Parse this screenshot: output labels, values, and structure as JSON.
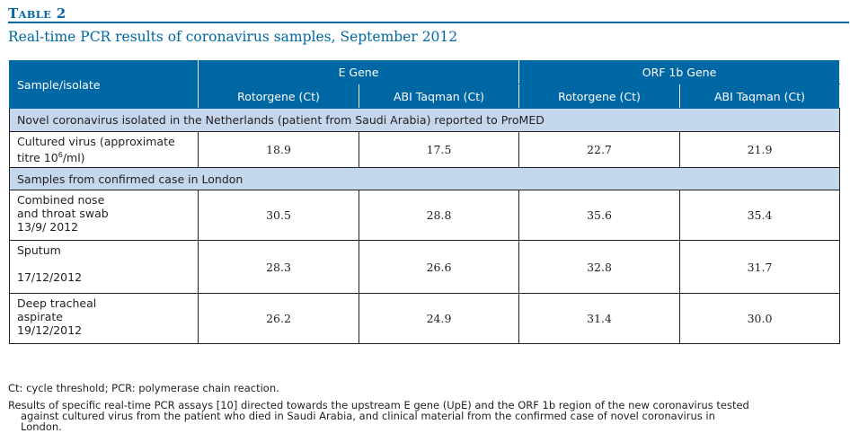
{
  "table_label": {
    "first": "T",
    "rest": "ABLE",
    "number": "2"
  },
  "table_title": "Real-time PCR results of coronavirus samples, September 2012",
  "header": {
    "sample_col": "Sample/isolate",
    "e_gene": "E Gene",
    "orf_gene": "ORF 1b Gene",
    "sub": [
      "Rotorgene (Ct)",
      "ABI Taqman (Ct)",
      "Rotorgene (Ct)",
      "ABI Taqman (Ct)"
    ]
  },
  "section1": "Novel coronavirus isolated in the Netherlands (patient from Saudi Arabia) reported to ProMED",
  "row_cultured": {
    "line1": "Cultured virus  (approximate",
    "line2_pre": "titre 10",
    "sup": "6",
    "line2_post": "/ml)",
    "values": [
      "18.9",
      "17.5",
      "22.7",
      "21.9"
    ]
  },
  "section2": "Samples from confirmed case in London",
  "rows": [
    {
      "line1": "Combined nose",
      "line2": "and  throat swab",
      "date": "13/9/ 2012",
      "values": [
        "30.5",
        "28.8",
        "35.6",
        "35.4"
      ]
    },
    {
      "line1": "Sputum",
      "line2": "",
      "date": "17/12/2012",
      "values": [
        "28.3",
        "26.6",
        "32.8",
        "31.7"
      ]
    },
    {
      "line1": "Deep tracheal",
      "line2": "aspirate",
      "date": "19/12/2012",
      "values": [
        "26.2",
        "24.9",
        "31.4",
        "30.0"
      ]
    }
  ],
  "footnote1": "Ct: cycle threshold; PCR: polymerase chain reaction.",
  "footnote2_lines": [
    "Results of specific real-time PCR assays [10] directed towards the upstream E gene (UpE) and the ORF 1b region of the new coronavirus tested",
    "against cultured virus from the patient who died in Saudi Arabia, and clinical material from the confirmed case of novel coronavirus in",
    "London."
  ]
}
